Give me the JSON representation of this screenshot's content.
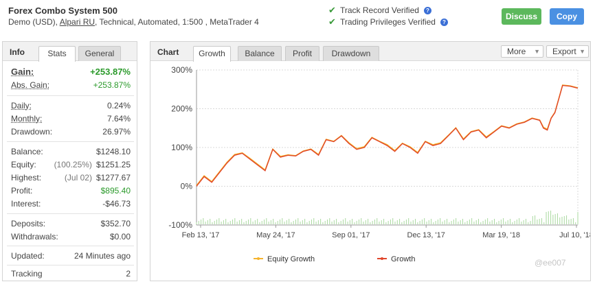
{
  "header": {
    "title": "Forex Combo System 500",
    "subtitle_prefix": "Demo (USD),",
    "broker": "Alpari RU",
    "subtitle_suffix": ", Technical, Automated, 1:500 , MetaTrader 4",
    "verifications": [
      "Track Record Verified",
      "Trading Privileges Verified"
    ],
    "discuss_label": "Discuss",
    "copy_label": "Copy"
  },
  "info": {
    "title": "Info",
    "tabs": [
      "Stats",
      "General"
    ],
    "gain_label": "Gain:",
    "gain_value": "+253.87%",
    "abs_gain_label": "Abs. Gain:",
    "abs_gain_value": "+253.87%",
    "daily_label": "Daily:",
    "daily_value": "0.24%",
    "monthly_label": "Monthly:",
    "monthly_value": "7.64%",
    "drawdown_label": "Drawdown:",
    "drawdown_value": "26.97%",
    "balance_label": "Balance:",
    "balance_value": "$1248.10",
    "equity_label": "Equity:",
    "equity_pct": "(100.25%)",
    "equity_value": "$1251.25",
    "highest_label": "Highest:",
    "highest_date": "(Jul 02)",
    "highest_value": "$1277.67",
    "profit_label": "Profit:",
    "profit_value": "$895.40",
    "interest_label": "Interest:",
    "interest_value": "-$46.73",
    "deposits_label": "Deposits:",
    "deposits_value": "$352.70",
    "withdrawals_label": "Withdrawals:",
    "withdrawals_value": "$0.00",
    "updated_label": "Updated:",
    "updated_value": "24 Minutes ago",
    "tracking_label": "Tracking",
    "tracking_value": "2"
  },
  "chart_panel": {
    "title": "Chart",
    "tabs": [
      "Growth",
      "Balance",
      "Profit",
      "Drawdown"
    ],
    "more_label": "More",
    "export_label": "Export"
  },
  "watermark": "@ee007",
  "colors": {
    "growth": "#e0452a",
    "equity": "#f5b32c",
    "volume": "#a9d99f",
    "green": "#2b9a2b",
    "discuss": "#5cb85c",
    "copy": "#4a90e2"
  },
  "chart_data": {
    "type": "line",
    "ylim": [
      -100,
      300
    ],
    "yticks": [
      "300%",
      "200%",
      "100%",
      "0%",
      "-100%"
    ],
    "ytick_values": [
      300,
      200,
      100,
      0,
      -100
    ],
    "xticks": [
      "Feb 13, '17",
      "May 24, '17",
      "Sep 01, '17",
      "Dec 13, '17",
      "Mar 19, '18",
      "Jul 10, '18"
    ],
    "x": [
      0,
      0.02,
      0.04,
      0.06,
      0.08,
      0.1,
      0.12,
      0.14,
      0.16,
      0.18,
      0.2,
      0.22,
      0.24,
      0.26,
      0.28,
      0.3,
      0.32,
      0.34,
      0.36,
      0.38,
      0.4,
      0.42,
      0.44,
      0.46,
      0.48,
      0.5,
      0.52,
      0.54,
      0.56,
      0.58,
      0.6,
      0.62,
      0.64,
      0.66,
      0.68,
      0.7,
      0.72,
      0.74,
      0.76,
      0.78,
      0.8,
      0.82,
      0.84,
      0.86,
      0.88,
      0.9,
      0.91,
      0.92,
      0.93,
      0.94,
      0.96,
      0.98,
      1.0
    ],
    "series": [
      {
        "name": "Growth",
        "values": [
          0,
          25,
          10,
          35,
          60,
          80,
          85,
          70,
          55,
          40,
          95,
          75,
          80,
          78,
          90,
          95,
          80,
          120,
          115,
          130,
          110,
          95,
          100,
          125,
          115,
          105,
          90,
          110,
          100,
          85,
          115,
          105,
          110,
          130,
          150,
          120,
          140,
          145,
          125,
          140,
          155,
          150,
          160,
          165,
          175,
          170,
          150,
          145,
          175,
          190,
          260,
          258,
          253
        ]
      },
      {
        "name": "Equity Growth",
        "values": [
          2,
          27,
          12,
          37,
          62,
          82,
          86,
          72,
          57,
          42,
          96,
          77,
          81,
          79,
          91,
          96,
          82,
          121,
          116,
          131,
          112,
          97,
          102,
          126,
          116,
          107,
          92,
          111,
          102,
          87,
          116,
          107,
          112,
          131,
          151,
          122,
          141,
          146,
          127,
          141,
          156,
          151,
          161,
          166,
          176,
          171,
          152,
          147,
          176,
          191,
          261,
          259,
          254
        ]
      }
    ],
    "legend": "bottom"
  }
}
